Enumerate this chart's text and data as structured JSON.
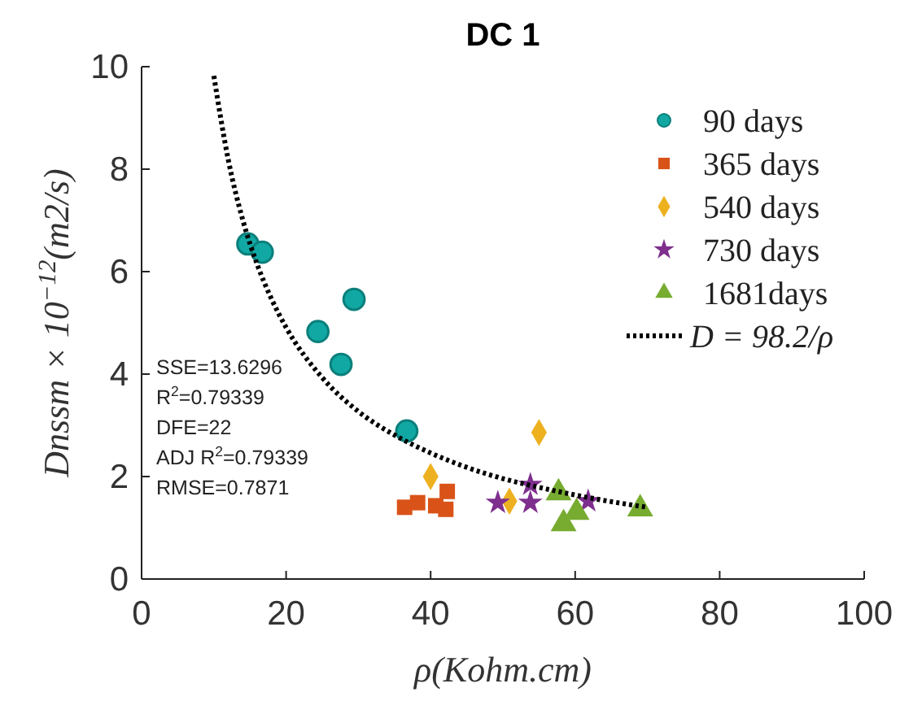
{
  "chart_data": {
    "type": "scatter",
    "title": "DC 1",
    "xlabel": "ρ(Kohm.cm)",
    "ylabel": "Dnssm × 10$^{−12}$(m2/s)",
    "xlim": [
      0,
      100
    ],
    "xticks": [
      0,
      20,
      40,
      60,
      80,
      100
    ],
    "ylim": [
      0,
      10
    ],
    "yticks": [
      0,
      2,
      4,
      6,
      8,
      10
    ],
    "grid": false,
    "legend": "top right",
    "annotations": [
      "SSE=13.6296",
      "R$^{2}$=0.79339",
      "DFE=22",
      "ADJ R$^{2}$=0.79339",
      "RMSE=0.7871"
    ],
    "series": [
      {
        "name": "90 days",
        "color": "#11a8a4",
        "marker": "circle",
        "x": [
          14.7,
          16.7,
          24.4,
          29.4,
          27.6,
          36.7
        ],
        "values": [
          6.54,
          6.38,
          4.83,
          5.46,
          4.19,
          2.89
        ]
      },
      {
        "name": "365 days",
        "color": "#d95319",
        "marker": "square",
        "x": [
          36.4,
          38.2,
          40.7,
          42.3,
          42.1
        ],
        "values": [
          1.4,
          1.49,
          1.43,
          1.71,
          1.36
        ]
      },
      {
        "name": "540 days",
        "color": "#edb120",
        "marker": "diamond",
        "x": [
          55.0,
          40.0,
          50.9
        ],
        "values": [
          2.86,
          2.0,
          1.52
        ]
      },
      {
        "name": "730 days",
        "color": "#7e2f8e",
        "marker": "star",
        "x": [
          49.3,
          53.8,
          53.8,
          61.8
        ],
        "values": [
          1.49,
          1.84,
          1.49,
          1.52
        ]
      },
      {
        "name": "1681days",
        "color": "#77ac30",
        "marker": "triangle",
        "x": [
          57.7,
          60.2,
          58.4,
          69.0
        ],
        "values": [
          1.68,
          1.3,
          1.08,
          1.37
        ]
      },
      {
        "name": "D = 98.2/ρ",
        "type": "line",
        "color": "#000000",
        "line_style": "dotted",
        "x": [
          10,
          12,
          14,
          16,
          18,
          20,
          25,
          30,
          35,
          40,
          45,
          50,
          55,
          60,
          65,
          70
        ],
        "values": [
          9.82,
          8.18,
          7.01,
          6.14,
          5.46,
          4.91,
          3.93,
          3.27,
          2.81,
          2.46,
          2.18,
          1.96,
          1.79,
          1.64,
          1.51,
          1.4
        ]
      }
    ]
  }
}
